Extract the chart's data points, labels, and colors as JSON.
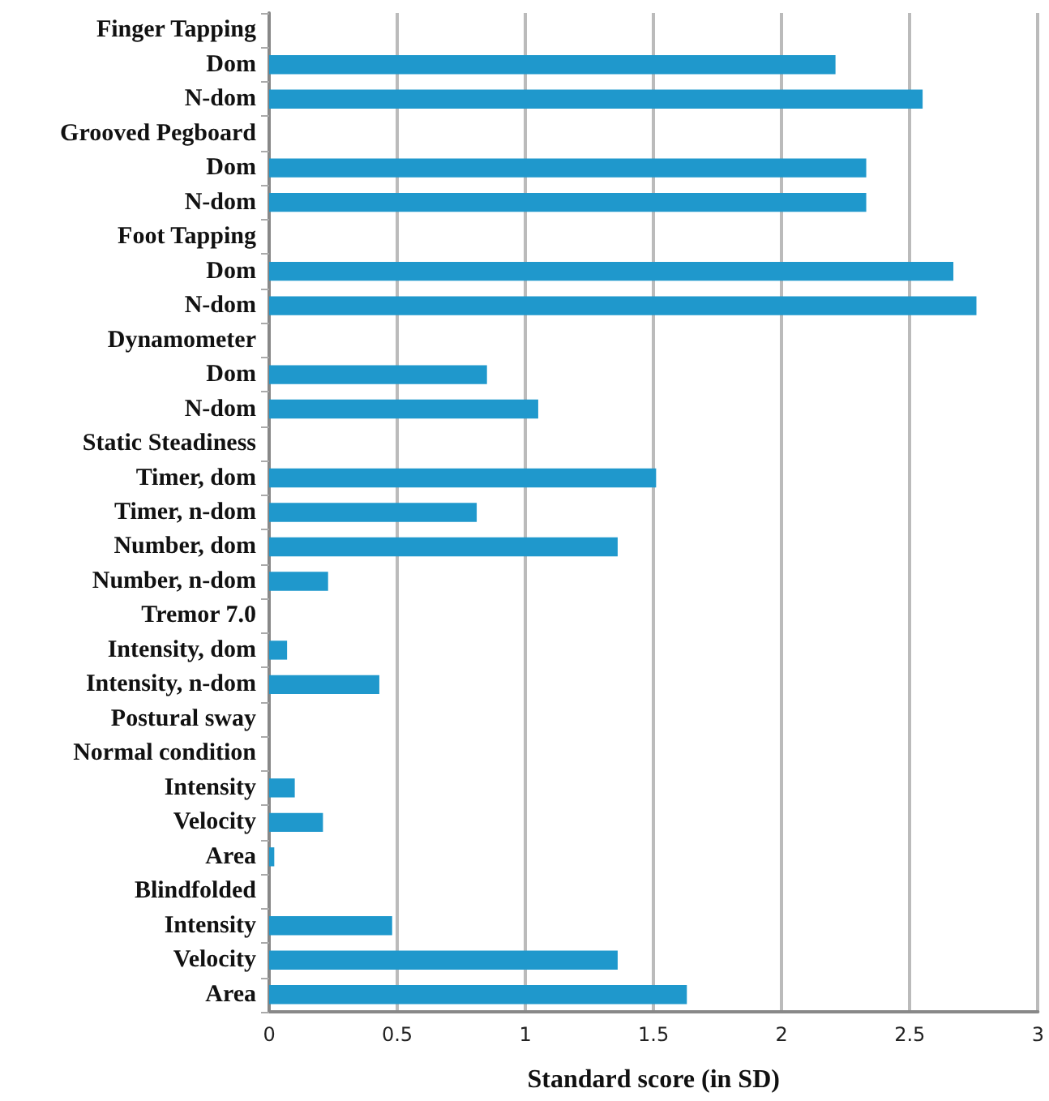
{
  "chart_data": {
    "type": "bar",
    "orientation": "horizontal",
    "xlabel": "Standard score (in SD)",
    "categories": [
      "Finger Tapping",
      "Dom",
      "N-dom",
      "Grooved Pegboard",
      "Dom",
      "N-dom",
      "Foot Tapping",
      "Dom",
      "N-dom",
      "Dynamometer",
      "Dom",
      "N-dom",
      "Static Steadiness",
      "Timer, dom",
      "Timer, n-dom",
      "Number, dom",
      "Number, n-dom",
      "Tremor 7.0",
      "Intensity, dom",
      "Intensity, n-dom",
      "Postural sway",
      "Normal condition",
      "Intensity",
      "Velocity",
      "Area",
      "Blindfolded",
      "Intensity",
      "Velocity",
      "Area"
    ],
    "values": [
      null,
      2.21,
      2.55,
      null,
      2.33,
      2.33,
      null,
      2.67,
      2.76,
      null,
      0.85,
      1.05,
      null,
      1.51,
      0.81,
      1.36,
      0.23,
      null,
      0.07,
      0.43,
      null,
      null,
      0.1,
      0.21,
      0.02,
      null,
      0.48,
      1.36,
      1.63
    ],
    "color": "#1f98cc",
    "xlim": [
      0,
      3
    ],
    "xticks": [
      0,
      0.5,
      1,
      1.5,
      2,
      2.5,
      3
    ],
    "grid": "x"
  }
}
